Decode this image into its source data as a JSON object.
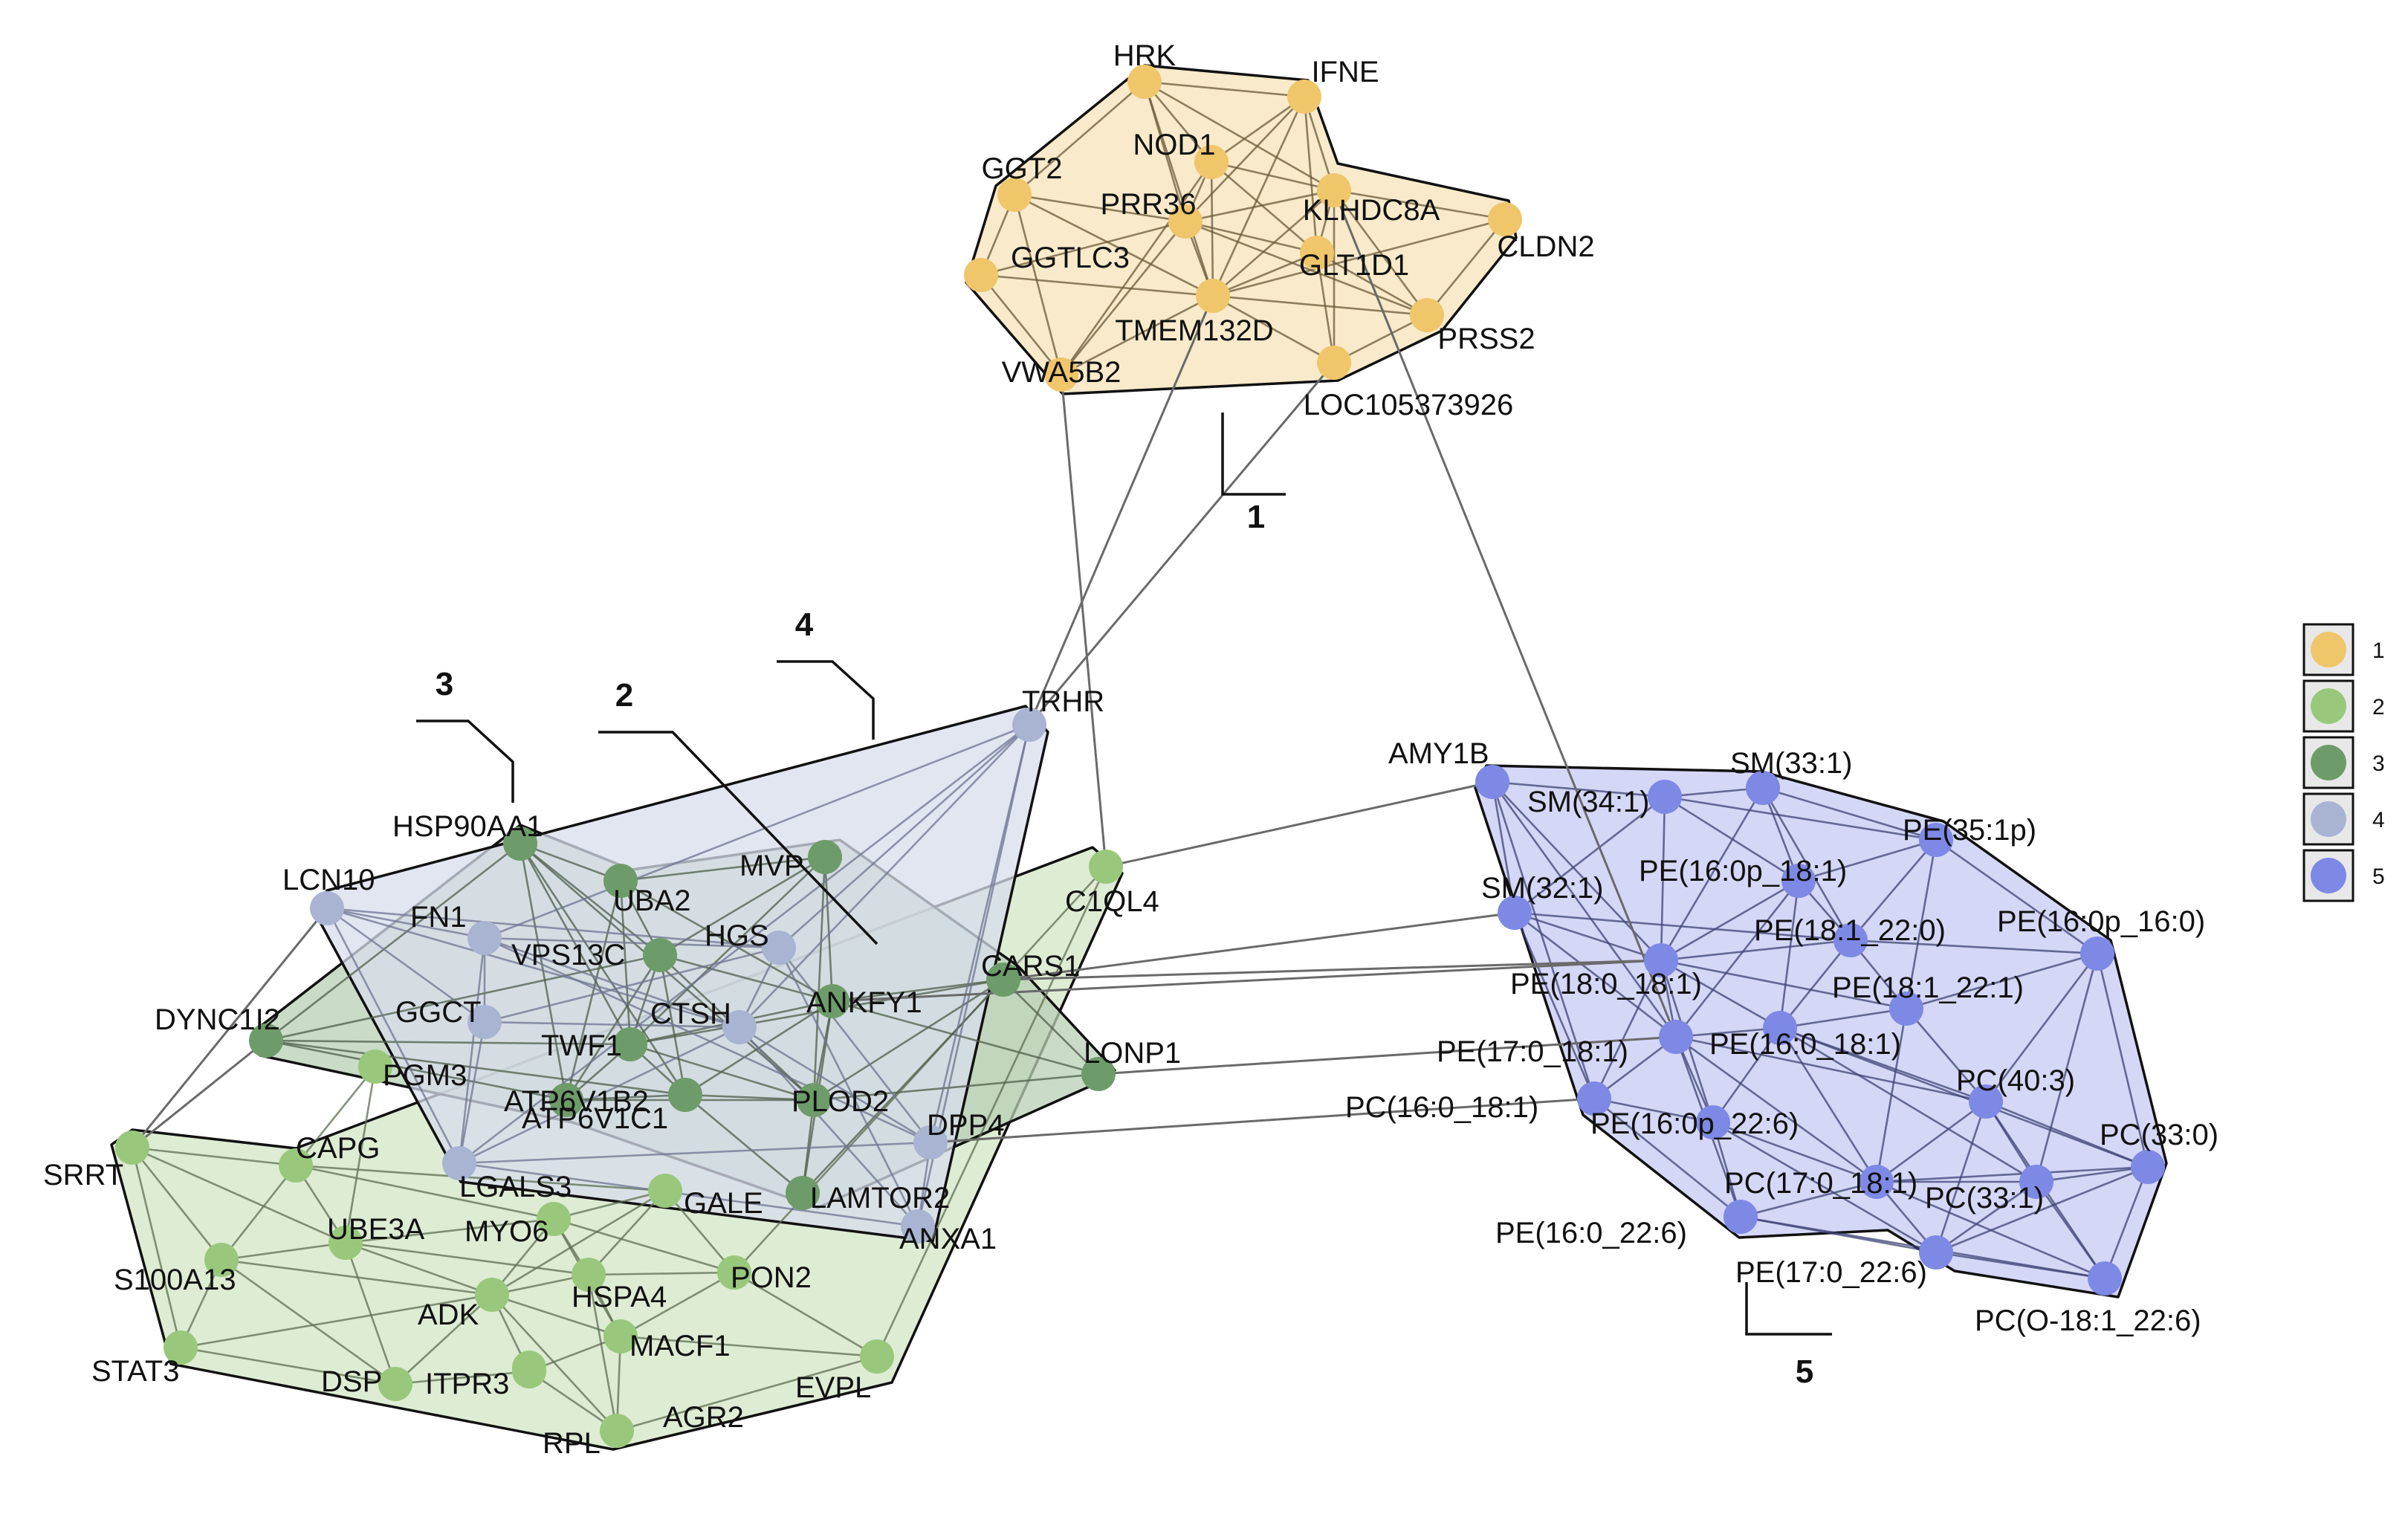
{
  "clusters": [
    {
      "id": "1",
      "label": "1",
      "color": "#F0C66B",
      "fill": "#F6E3B8"
    },
    {
      "id": "2",
      "label": "2",
      "color": "#99C87C",
      "fill": "#D3E6C6"
    },
    {
      "id": "3",
      "label": "3",
      "color": "#6E9B6A",
      "fill": "#B8CFB5"
    },
    {
      "id": "4",
      "label": "4",
      "color": "#A8B4D2",
      "fill": "#D8DDEC"
    },
    {
      "id": "5",
      "label": "5",
      "color": "#7E89E5",
      "fill": "#C5CAF3"
    }
  ],
  "legend": {
    "items": [
      {
        "label": "1",
        "color": "#F0C66B"
      },
      {
        "label": "2",
        "color": "#99C87C"
      },
      {
        "label": "3",
        "color": "#6E9B6A"
      },
      {
        "label": "4",
        "color": "#A8B4D2"
      },
      {
        "label": "5",
        "color": "#7E89E5"
      }
    ]
  },
  "nodes": [
    {
      "id": "HRK",
      "cluster": "1"
    },
    {
      "id": "IFNE",
      "cluster": "1"
    },
    {
      "id": "NOD1",
      "cluster": "1"
    },
    {
      "id": "GGT2",
      "cluster": "1"
    },
    {
      "id": "PRR36",
      "cluster": "1"
    },
    {
      "id": "KLHDC8A",
      "cluster": "1"
    },
    {
      "id": "CLDN2",
      "cluster": "1"
    },
    {
      "id": "GGTLC3",
      "cluster": "1"
    },
    {
      "id": "GLT1D1",
      "cluster": "1"
    },
    {
      "id": "TMEM132D",
      "cluster": "1"
    },
    {
      "id": "PRSS2",
      "cluster": "1"
    },
    {
      "id": "VWA5B2",
      "cluster": "1"
    },
    {
      "id": "LOC105373926",
      "cluster": "1"
    },
    {
      "id": "C1QL4",
      "cluster": "2"
    },
    {
      "id": "SRRT",
      "cluster": "2"
    },
    {
      "id": "CAPG",
      "cluster": "2"
    },
    {
      "id": "UBE3A",
      "cluster": "2"
    },
    {
      "id": "S100A13",
      "cluster": "2"
    },
    {
      "id": "GALE",
      "cluster": "2"
    },
    {
      "id": "MYO6",
      "cluster": "2"
    },
    {
      "id": "PON2",
      "cluster": "2"
    },
    {
      "id": "HSPA4",
      "cluster": "2"
    },
    {
      "id": "ADK",
      "cluster": "2"
    },
    {
      "id": "STAT3",
      "cluster": "2"
    },
    {
      "id": "DSP",
      "cluster": "2"
    },
    {
      "id": "MACF1",
      "cluster": "2"
    },
    {
      "id": "ITPR3",
      "cluster": "2"
    },
    {
      "id": "RPL",
      "cluster": "2"
    },
    {
      "id": "AGR2",
      "cluster": "2"
    },
    {
      "id": "EVPL",
      "cluster": "2"
    },
    {
      "id": "PGM3",
      "cluster": "2"
    },
    {
      "id": "HSP90AA1",
      "cluster": "3"
    },
    {
      "id": "MVP",
      "cluster": "3"
    },
    {
      "id": "UBA2",
      "cluster": "3"
    },
    {
      "id": "VPS13C",
      "cluster": "3"
    },
    {
      "id": "CARS1",
      "cluster": "3"
    },
    {
      "id": "ANKFY1",
      "cluster": "3"
    },
    {
      "id": "DYNC1I2",
      "cluster": "3"
    },
    {
      "id": "TWF1",
      "cluster": "3"
    },
    {
      "id": "LONP1",
      "cluster": "3"
    },
    {
      "id": "ATP6V1B2",
      "cluster": "3"
    },
    {
      "id": "PLOD2",
      "cluster": "3"
    },
    {
      "id": "ATP6V1C1",
      "cluster": "3"
    },
    {
      "id": "LAMTOR2",
      "cluster": "3"
    },
    {
      "id": "TRHR",
      "cluster": "4"
    },
    {
      "id": "LCN10",
      "cluster": "4"
    },
    {
      "id": "FN1",
      "cluster": "4"
    },
    {
      "id": "HGS",
      "cluster": "4"
    },
    {
      "id": "GGCT",
      "cluster": "4"
    },
    {
      "id": "CTSH",
      "cluster": "4"
    },
    {
      "id": "DPP4",
      "cluster": "4"
    },
    {
      "id": "LGALS3",
      "cluster": "4"
    },
    {
      "id": "ANXA1",
      "cluster": "4"
    },
    {
      "id": "AMY1B",
      "cluster": "5"
    },
    {
      "id": "SM(33:1)",
      "cluster": "5"
    },
    {
      "id": "SM(34:1)",
      "cluster": "5"
    },
    {
      "id": "PE(35:1p)",
      "cluster": "5"
    },
    {
      "id": "PE(16:0p_18:1)",
      "cluster": "5"
    },
    {
      "id": "SM(32:1)",
      "cluster": "5"
    },
    {
      "id": "PE(18:1_22:0)",
      "cluster": "5"
    },
    {
      "id": "PE(16:0p_16:0)",
      "cluster": "5"
    },
    {
      "id": "PE(18:0_18:1)",
      "cluster": "5"
    },
    {
      "id": "PE(18:1_22:1)",
      "cluster": "5"
    },
    {
      "id": "PE(17:0_18:1)",
      "cluster": "5"
    },
    {
      "id": "PE(16:0_18:1)",
      "cluster": "5"
    },
    {
      "id": "PC(40:3)",
      "cluster": "5"
    },
    {
      "id": "PC(16:0_18:1)",
      "cluster": "5"
    },
    {
      "id": "PE(16:0p_22:6)",
      "cluster": "5"
    },
    {
      "id": "PC(33:0)",
      "cluster": "5"
    },
    {
      "id": "PC(17:0_18:1)",
      "cluster": "5"
    },
    {
      "id": "PC(33:1)",
      "cluster": "5"
    },
    {
      "id": "PE(16:0_22:6)",
      "cluster": "5"
    },
    {
      "id": "PE(17:0_22:6)",
      "cluster": "5"
    },
    {
      "id": "PC(O-18:1_22:6)",
      "cluster": "5"
    }
  ],
  "inter_edges": [
    [
      "VWA5B2",
      "C1QL4"
    ],
    [
      "TMEM132D",
      "TRHR"
    ],
    [
      "LOC105373926",
      "TRHR"
    ],
    [
      "KLHDC8A",
      "PE(17:0_18:1)"
    ],
    [
      "C1QL4",
      "AMY1B"
    ],
    [
      "CARS1",
      "SM(32:1)"
    ],
    [
      "CARS1",
      "PE(18:0_18:1)"
    ],
    [
      "LONP1",
      "PE(17:0_18:1)"
    ],
    [
      "DPP4",
      "PC(16:0_18:1)"
    ],
    [
      "SRRT",
      "LCN10"
    ],
    [
      "SRRT",
      "DYNC1I2"
    ],
    [
      "ANKFY1",
      "PE(18:0_18:1)"
    ]
  ]
}
